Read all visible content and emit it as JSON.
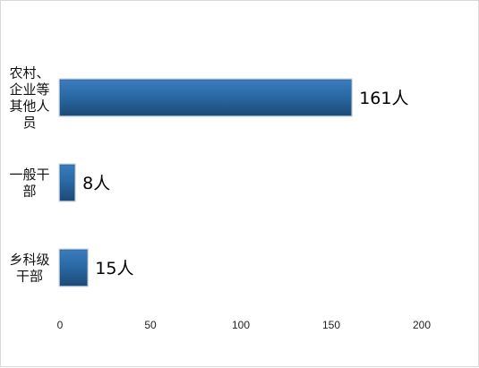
{
  "chart_data": {
    "type": "bar",
    "orientation": "horizontal",
    "categories": [
      "农村、企业等其他人员",
      "一般干部",
      "乡科级干部"
    ],
    "category_label_lines": [
      [
        "农村、",
        "企业等",
        "其他人",
        "员"
      ],
      [
        "一般干",
        "部"
      ],
      [
        "乡科级",
        "干部"
      ]
    ],
    "values": [
      161,
      8,
      15
    ],
    "data_labels": [
      "161人",
      "8人",
      "15人"
    ],
    "x_ticks": [
      0,
      50,
      100,
      150,
      200
    ],
    "xlim": [
      0,
      200
    ],
    "title": "",
    "xlabel": "",
    "ylabel": "",
    "grid": false,
    "legend": "none",
    "bar_color": "#2a6aa6",
    "bar_color_dark": "#1e4f7d",
    "bar_edge": "#c5d2de"
  }
}
